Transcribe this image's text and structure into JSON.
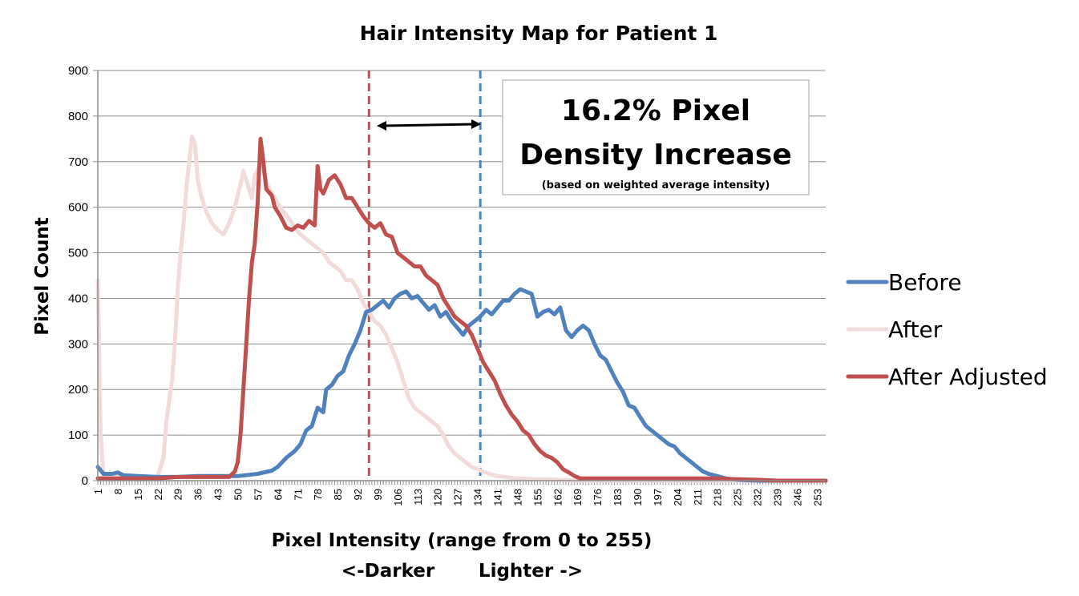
{
  "chart_data": {
    "type": "line",
    "title": "Hair Intensity Map for Patient 1",
    "xlabel": "Pixel Intensity (range from 0 to 255)",
    "xlabel_sub_left": "<-Darker",
    "xlabel_sub_right": "Lighter ->",
    "ylabel": "Pixel Count",
    "ylim": [
      0,
      900
    ],
    "yticks": [
      0,
      100,
      200,
      300,
      400,
      500,
      600,
      700,
      800,
      900
    ],
    "xlim": [
      1,
      256
    ],
    "xticks": [
      1,
      8,
      15,
      22,
      29,
      36,
      43,
      50,
      57,
      64,
      71,
      78,
      85,
      92,
      99,
      106,
      113,
      120,
      127,
      134,
      141,
      148,
      155,
      162,
      169,
      176,
      183,
      190,
      197,
      204,
      211,
      218,
      225,
      232,
      239,
      246,
      253
    ],
    "grid": true,
    "legend_position": "right",
    "annotation": {
      "line1": "16.2% Pixel",
      "line2": "Density Increase",
      "note": "(based on weighted average intensity)"
    },
    "vertical_markers": [
      {
        "x": 96,
        "series": "After Adjusted",
        "color": "#c0504d"
      },
      {
        "x": 135,
        "series": "Before",
        "color": "#4f81bd"
      }
    ],
    "series": [
      {
        "name": "Before",
        "color": "#4f81bd",
        "points": [
          [
            1,
            30
          ],
          [
            3,
            15
          ],
          [
            6,
            15
          ],
          [
            8,
            18
          ],
          [
            10,
            12
          ],
          [
            15,
            10
          ],
          [
            22,
            8
          ],
          [
            29,
            8
          ],
          [
            36,
            10
          ],
          [
            43,
            10
          ],
          [
            50,
            10
          ],
          [
            57,
            15
          ],
          [
            62,
            22
          ],
          [
            64,
            30
          ],
          [
            67,
            50
          ],
          [
            70,
            65
          ],
          [
            72,
            80
          ],
          [
            74,
            110
          ],
          [
            76,
            120
          ],
          [
            78,
            160
          ],
          [
            80,
            150
          ],
          [
            81,
            200
          ],
          [
            83,
            210
          ],
          [
            85,
            230
          ],
          [
            87,
            240
          ],
          [
            89,
            275
          ],
          [
            91,
            300
          ],
          [
            93,
            330
          ],
          [
            95,
            370
          ],
          [
            97,
            375
          ],
          [
            99,
            385
          ],
          [
            101,
            395
          ],
          [
            103,
            380
          ],
          [
            105,
            400
          ],
          [
            107,
            410
          ],
          [
            109,
            415
          ],
          [
            111,
            400
          ],
          [
            113,
            405
          ],
          [
            115,
            390
          ],
          [
            117,
            375
          ],
          [
            119,
            385
          ],
          [
            121,
            360
          ],
          [
            123,
            370
          ],
          [
            125,
            350
          ],
          [
            127,
            335
          ],
          [
            129,
            320
          ],
          [
            131,
            340
          ],
          [
            133,
            350
          ],
          [
            135,
            360
          ],
          [
            137,
            375
          ],
          [
            139,
            365
          ],
          [
            141,
            380
          ],
          [
            143,
            395
          ],
          [
            145,
            395
          ],
          [
            147,
            410
          ],
          [
            149,
            420
          ],
          [
            151,
            415
          ],
          [
            153,
            410
          ],
          [
            155,
            360
          ],
          [
            157,
            370
          ],
          [
            159,
            375
          ],
          [
            161,
            365
          ],
          [
            163,
            380
          ],
          [
            165,
            330
          ],
          [
            167,
            315
          ],
          [
            169,
            330
          ],
          [
            171,
            340
          ],
          [
            173,
            330
          ],
          [
            175,
            300
          ],
          [
            177,
            275
          ],
          [
            179,
            265
          ],
          [
            181,
            240
          ],
          [
            183,
            215
          ],
          [
            185,
            195
          ],
          [
            187,
            165
          ],
          [
            189,
            160
          ],
          [
            191,
            140
          ],
          [
            193,
            120
          ],
          [
            195,
            110
          ],
          [
            197,
            100
          ],
          [
            199,
            90
          ],
          [
            201,
            80
          ],
          [
            203,
            75
          ],
          [
            205,
            60
          ],
          [
            207,
            50
          ],
          [
            209,
            40
          ],
          [
            211,
            30
          ],
          [
            213,
            20
          ],
          [
            215,
            15
          ],
          [
            218,
            10
          ],
          [
            221,
            5
          ],
          [
            225,
            2
          ],
          [
            232,
            0
          ],
          [
            239,
            0
          ],
          [
            246,
            0
          ],
          [
            253,
            0
          ],
          [
            256,
            0
          ]
        ]
      },
      {
        "name": "After",
        "color": "#f2dcdb",
        "points": [
          [
            1,
            440
          ],
          [
            2,
            100
          ],
          [
            3,
            10
          ],
          [
            8,
            8
          ],
          [
            15,
            5
          ],
          [
            20,
            5
          ],
          [
            22,
            10
          ],
          [
            24,
            50
          ],
          [
            25,
            130
          ],
          [
            27,
            220
          ],
          [
            28,
            300
          ],
          [
            29,
            420
          ],
          [
            30,
            500
          ],
          [
            31,
            560
          ],
          [
            32,
            640
          ],
          [
            33,
            700
          ],
          [
            34,
            755
          ],
          [
            35,
            740
          ],
          [
            36,
            660
          ],
          [
            37,
            630
          ],
          [
            39,
            590
          ],
          [
            41,
            565
          ],
          [
            43,
            550
          ],
          [
            45,
            540
          ],
          [
            47,
            565
          ],
          [
            49,
            600
          ],
          [
            51,
            650
          ],
          [
            52,
            680
          ],
          [
            53,
            660
          ],
          [
            54,
            640
          ],
          [
            55,
            620
          ],
          [
            56,
            670
          ],
          [
            57,
            680
          ],
          [
            58,
            700
          ],
          [
            59,
            680
          ],
          [
            60,
            655
          ],
          [
            62,
            630
          ],
          [
            64,
            610
          ],
          [
            66,
            590
          ],
          [
            68,
            575
          ],
          [
            70,
            555
          ],
          [
            72,
            540
          ],
          [
            74,
            530
          ],
          [
            76,
            520
          ],
          [
            78,
            510
          ],
          [
            80,
            500
          ],
          [
            82,
            480
          ],
          [
            84,
            470
          ],
          [
            86,
            460
          ],
          [
            88,
            440
          ],
          [
            90,
            440
          ],
          [
            92,
            420
          ],
          [
            94,
            390
          ],
          [
            96,
            370
          ],
          [
            98,
            350
          ],
          [
            100,
            340
          ],
          [
            102,
            320
          ],
          [
            104,
            290
          ],
          [
            106,
            260
          ],
          [
            108,
            220
          ],
          [
            110,
            180
          ],
          [
            112,
            160
          ],
          [
            114,
            150
          ],
          [
            116,
            140
          ],
          [
            118,
            130
          ],
          [
            120,
            120
          ],
          [
            122,
            100
          ],
          [
            124,
            75
          ],
          [
            126,
            60
          ],
          [
            128,
            50
          ],
          [
            130,
            40
          ],
          [
            132,
            30
          ],
          [
            134,
            25
          ],
          [
            136,
            20
          ],
          [
            138,
            15
          ],
          [
            141,
            10
          ],
          [
            148,
            5
          ],
          [
            155,
            3
          ],
          [
            162,
            2
          ],
          [
            169,
            0
          ],
          [
            253,
            0
          ],
          [
            256,
            0
          ]
        ]
      },
      {
        "name": "After Adjusted",
        "color": "#c0504d",
        "points": [
          [
            1,
            5
          ],
          [
            8,
            5
          ],
          [
            15,
            5
          ],
          [
            22,
            5
          ],
          [
            29,
            8
          ],
          [
            36,
            8
          ],
          [
            43,
            8
          ],
          [
            47,
            8
          ],
          [
            49,
            20
          ],
          [
            50,
            40
          ],
          [
            51,
            100
          ],
          [
            52,
            200
          ],
          [
            53,
            300
          ],
          [
            54,
            400
          ],
          [
            55,
            480
          ],
          [
            56,
            520
          ],
          [
            57,
            610
          ],
          [
            58,
            750
          ],
          [
            59,
            700
          ],
          [
            60,
            640
          ],
          [
            62,
            625
          ],
          [
            63,
            600
          ],
          [
            65,
            580
          ],
          [
            67,
            555
          ],
          [
            69,
            550
          ],
          [
            71,
            560
          ],
          [
            73,
            555
          ],
          [
            75,
            570
          ],
          [
            77,
            560
          ],
          [
            78,
            690
          ],
          [
            79,
            640
          ],
          [
            80,
            630
          ],
          [
            82,
            660
          ],
          [
            84,
            670
          ],
          [
            86,
            650
          ],
          [
            88,
            620
          ],
          [
            90,
            620
          ],
          [
            92,
            600
          ],
          [
            94,
            580
          ],
          [
            96,
            565
          ],
          [
            98,
            555
          ],
          [
            100,
            565
          ],
          [
            102,
            540
          ],
          [
            104,
            535
          ],
          [
            106,
            500
          ],
          [
            108,
            490
          ],
          [
            110,
            480
          ],
          [
            112,
            470
          ],
          [
            114,
            470
          ],
          [
            116,
            450
          ],
          [
            118,
            440
          ],
          [
            120,
            430
          ],
          [
            122,
            400
          ],
          [
            124,
            380
          ],
          [
            126,
            360
          ],
          [
            128,
            350
          ],
          [
            130,
            340
          ],
          [
            132,
            320
          ],
          [
            134,
            290
          ],
          [
            136,
            260
          ],
          [
            138,
            240
          ],
          [
            140,
            220
          ],
          [
            142,
            190
          ],
          [
            144,
            165
          ],
          [
            146,
            145
          ],
          [
            148,
            130
          ],
          [
            150,
            110
          ],
          [
            152,
            100
          ],
          [
            154,
            80
          ],
          [
            156,
            65
          ],
          [
            158,
            55
          ],
          [
            160,
            50
          ],
          [
            162,
            40
          ],
          [
            164,
            25
          ],
          [
            166,
            18
          ],
          [
            168,
            10
          ],
          [
            170,
            5
          ],
          [
            176,
            5
          ],
          [
            183,
            5
          ],
          [
            190,
            5
          ],
          [
            197,
            5
          ],
          [
            204,
            5
          ],
          [
            211,
            5
          ],
          [
            218,
            5
          ],
          [
            225,
            3
          ],
          [
            232,
            2
          ],
          [
            239,
            0
          ],
          [
            246,
            0
          ],
          [
            253,
            0
          ],
          [
            256,
            0
          ]
        ]
      }
    ]
  }
}
